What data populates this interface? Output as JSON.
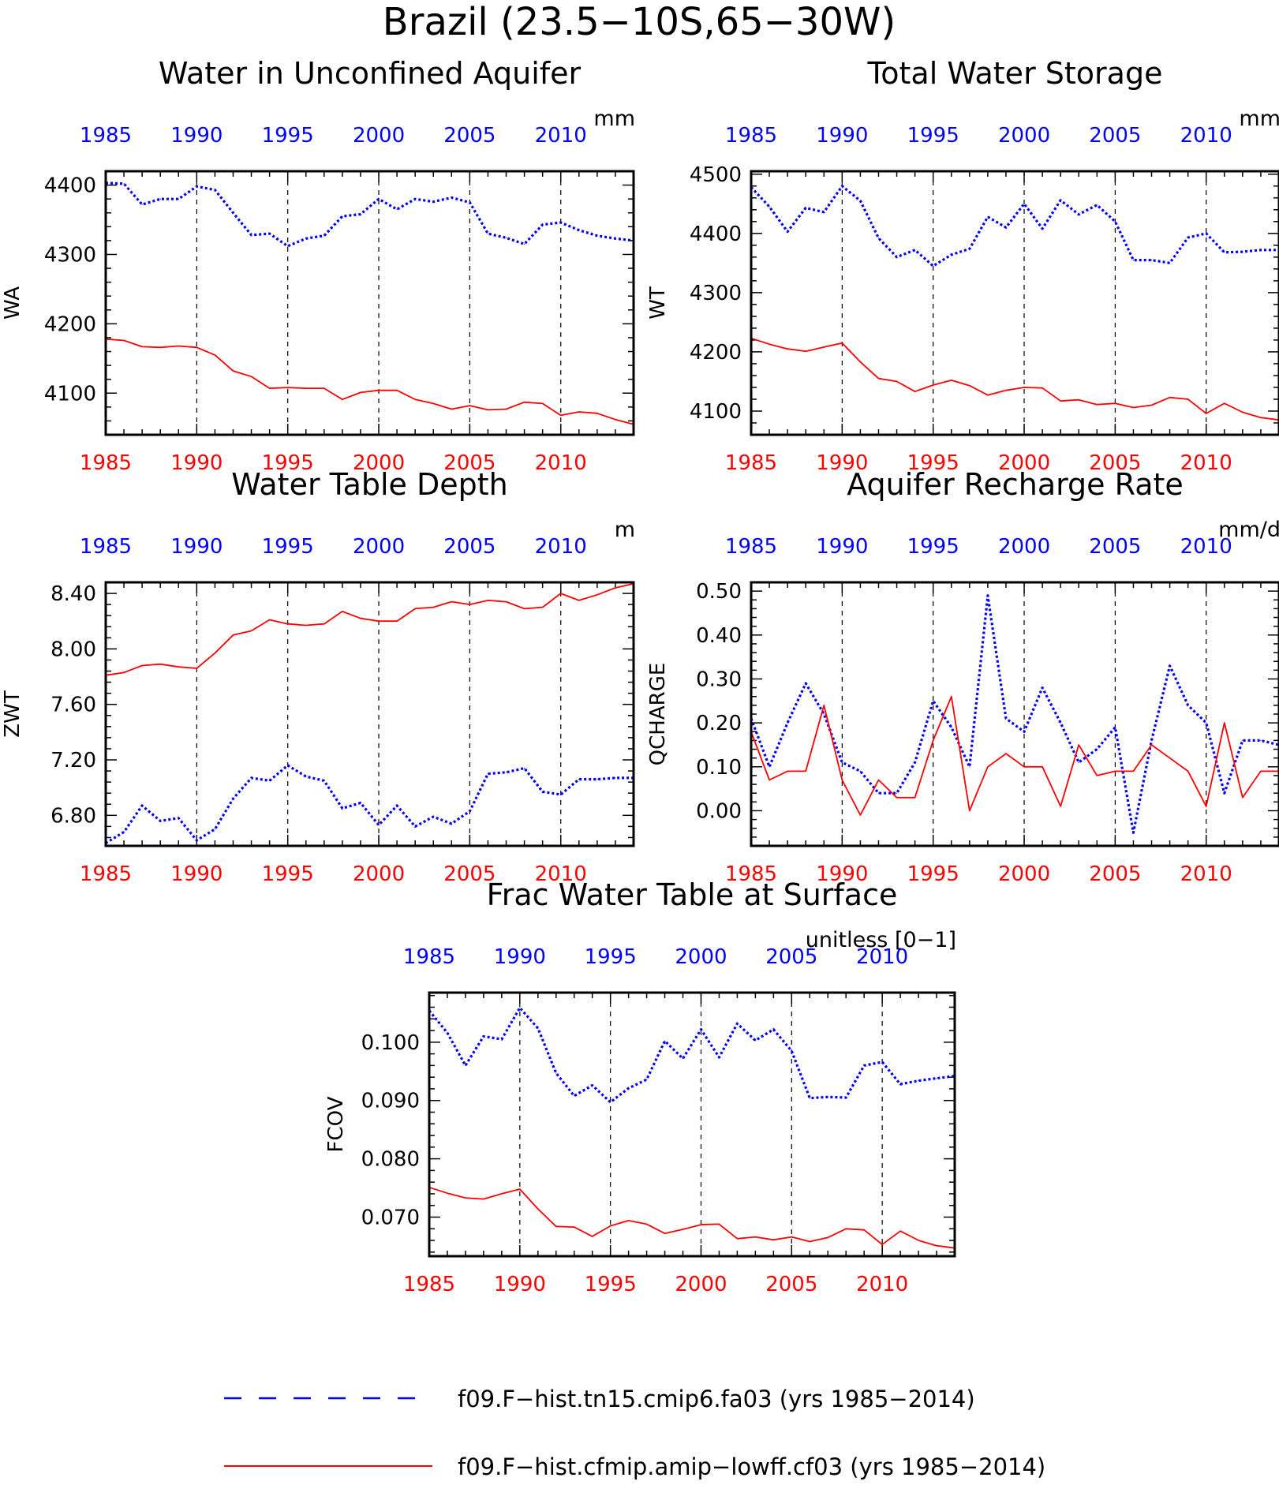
{
  "figure": {
    "main_title": "Brazil (23.5−10S,65−30W)"
  },
  "colors": {
    "series_blue": "#0000ff",
    "series_red": "#ff0000",
    "axis": "#000000"
  },
  "legend": [
    {
      "label": "f09.F−hist.tn15.cmip6.fa03 (yrs 1985−2014)",
      "color": "#0000ff",
      "style": "dashed"
    },
    {
      "label": "f09.F−hist.cfmip.amip−lowff.cf03 (yrs 1985−2014)",
      "color": "#ff0000",
      "style": "solid"
    }
  ],
  "chart_data": [
    {
      "type": "line",
      "title": "Water in Unconfined Aquifer",
      "units": "mm",
      "ylabel": "WA",
      "xlim": [
        1985,
        2014
      ],
      "ylim": [
        4040,
        4420
      ],
      "yticks": [
        4100,
        4200,
        4300,
        4400
      ],
      "ytick_labels": [
        "4100",
        "4200",
        "4300",
        "4400"
      ],
      "xticks": [
        1985,
        1990,
        1995,
        2000,
        2005,
        2010
      ],
      "xtick_labels": [
        "1985",
        "1990",
        "1995",
        "2000",
        "2005",
        "2010"
      ],
      "x": [
        1985,
        1986,
        1987,
        1988,
        1989,
        1990,
        1991,
        1992,
        1993,
        1994,
        1995,
        1996,
        1997,
        1998,
        1999,
        2000,
        2001,
        2002,
        2003,
        2004,
        2005,
        2006,
        2007,
        2008,
        2009,
        2010,
        2011,
        2012,
        2013,
        2014
      ],
      "series": [
        {
          "values": [
            4403,
            4402,
            4372,
            4380,
            4380,
            4398,
            4393,
            4360,
            4328,
            4330,
            4312,
            4323,
            4327,
            4355,
            4358,
            4380,
            4365,
            4380,
            4376,
            4382,
            4375,
            4330,
            4324,
            4315,
            4343,
            4346,
            4335,
            4327,
            4323,
            4320
          ],
          "color": "#0000ff",
          "style": "dashed"
        },
        {
          "values": [
            4178,
            4176,
            4167,
            4166,
            4168,
            4166,
            4155,
            4132,
            4124,
            4107,
            4108,
            4107,
            4107,
            4091,
            4101,
            4104,
            4104,
            4091,
            4085,
            4077,
            4082,
            4076,
            4077,
            4087,
            4085,
            4068,
            4073,
            4071,
            4062,
            4055
          ],
          "color": "#ff0000",
          "style": "solid"
        }
      ]
    },
    {
      "type": "line",
      "title": "Total Water Storage",
      "units": "mm",
      "ylabel": "WT",
      "xlim": [
        1985,
        2014
      ],
      "ylim": [
        4060,
        4505
      ],
      "yticks": [
        4100,
        4200,
        4300,
        4400,
        4500
      ],
      "ytick_labels": [
        "4100",
        "4200",
        "4300",
        "4400",
        "4500"
      ],
      "xticks": [
        1985,
        1990,
        1995,
        2000,
        2005,
        2010
      ],
      "xtick_labels": [
        "1985",
        "1990",
        "1995",
        "2000",
        "2005",
        "2010"
      ],
      "x": [
        1985,
        1986,
        1987,
        1988,
        1989,
        1990,
        1991,
        1992,
        1993,
        1994,
        1995,
        1996,
        1997,
        1998,
        1999,
        2000,
        2001,
        2002,
        2003,
        2004,
        2005,
        2006,
        2007,
        2008,
        2009,
        2010,
        2011,
        2012,
        2013,
        2014
      ],
      "series": [
        {
          "values": [
            4478,
            4445,
            4403,
            4443,
            4436,
            4480,
            4455,
            4392,
            4360,
            4372,
            4345,
            4364,
            4374,
            4428,
            4410,
            4450,
            4408,
            4456,
            4432,
            4448,
            4420,
            4355,
            4355,
            4350,
            4393,
            4400,
            4368,
            4369,
            4372,
            4372
          ],
          "color": "#0000ff",
          "style": "dashed"
        },
        {
          "values": [
            4223,
            4213,
            4205,
            4201,
            4208,
            4215,
            4183,
            4155,
            4150,
            4133,
            4144,
            4152,
            4143,
            4127,
            4135,
            4140,
            4139,
            4117,
            4119,
            4111,
            4113,
            4106,
            4110,
            4123,
            4120,
            4096,
            4113,
            4098,
            4089,
            4085
          ],
          "color": "#ff0000",
          "style": "solid"
        }
      ]
    },
    {
      "type": "line",
      "title": "Water Table Depth",
      "units": "m",
      "ylabel": "ZWT",
      "xlim": [
        1985,
        2014
      ],
      "ylim": [
        6.58,
        8.48
      ],
      "yticks": [
        6.8,
        7.2,
        7.6,
        8.0,
        8.4
      ],
      "ytick_labels": [
        "6.80",
        "7.20",
        "7.60",
        "8.00",
        "8.40"
      ],
      "xticks": [
        1985,
        1990,
        1995,
        2000,
        2005,
        2010
      ],
      "xtick_labels": [
        "1985",
        "1990",
        "1995",
        "2000",
        "2005",
        "2010"
      ],
      "x": [
        1985,
        1986,
        1987,
        1988,
        1989,
        1990,
        1991,
        1992,
        1993,
        1994,
        1995,
        1996,
        1997,
        1998,
        1999,
        2000,
        2001,
        2002,
        2003,
        2004,
        2005,
        2006,
        2007,
        2008,
        2009,
        2010,
        2011,
        2012,
        2013,
        2014
      ],
      "series": [
        {
          "values": [
            6.6,
            6.68,
            6.87,
            6.76,
            6.78,
            6.62,
            6.7,
            6.92,
            7.07,
            7.05,
            7.16,
            7.08,
            7.05,
            6.85,
            6.89,
            6.73,
            6.87,
            6.72,
            6.79,
            6.74,
            6.83,
            7.1,
            7.11,
            7.14,
            6.97,
            6.95,
            7.06,
            7.06,
            7.07,
            7.07
          ],
          "color": "#0000ff",
          "style": "dashed"
        },
        {
          "values": [
            7.81,
            7.83,
            7.88,
            7.89,
            7.87,
            7.86,
            7.97,
            8.1,
            8.13,
            8.21,
            8.18,
            8.17,
            8.18,
            8.27,
            8.22,
            8.2,
            8.2,
            8.29,
            8.3,
            8.34,
            8.32,
            8.35,
            8.34,
            8.29,
            8.3,
            8.4,
            8.35,
            8.39,
            8.44,
            8.47
          ],
          "color": "#ff0000",
          "style": "solid"
        }
      ]
    },
    {
      "type": "line",
      "title": "Aquifer Recharge Rate",
      "units": "mm/d",
      "ylabel": "QCHARGE",
      "xlim": [
        1985,
        2014
      ],
      "ylim": [
        -0.08,
        0.52
      ],
      "yticks": [
        0.0,
        0.1,
        0.2,
        0.3,
        0.4,
        0.5
      ],
      "ytick_labels": [
        "0.00",
        "0.10",
        "0.20",
        "0.30",
        "0.40",
        "0.50"
      ],
      "xticks": [
        1985,
        1990,
        1995,
        2000,
        2005,
        2010
      ],
      "xtick_labels": [
        "1985",
        "1990",
        "1995",
        "2000",
        "2005",
        "2010"
      ],
      "x": [
        1985,
        1986,
        1987,
        1988,
        1989,
        1990,
        1991,
        1992,
        1993,
        1994,
        1995,
        1996,
        1997,
        1998,
        1999,
        2000,
        2001,
        2002,
        2003,
        2004,
        2005,
        2006,
        2007,
        2008,
        2009,
        2010,
        2011,
        2012,
        2013,
        2014
      ],
      "series": [
        {
          "values": [
            0.21,
            0.1,
            0.2,
            0.29,
            0.22,
            0.11,
            0.09,
            0.04,
            0.04,
            0.11,
            0.25,
            0.19,
            0.1,
            0.49,
            0.21,
            0.18,
            0.28,
            0.2,
            0.11,
            0.14,
            0.19,
            -0.05,
            0.16,
            0.33,
            0.24,
            0.2,
            0.04,
            0.16,
            0.16,
            0.15
          ],
          "color": "#0000ff",
          "style": "dashed"
        },
        {
          "values": [
            0.18,
            0.07,
            0.09,
            0.09,
            0.24,
            0.07,
            -0.01,
            0.07,
            0.03,
            0.03,
            0.16,
            0.26,
            0.0,
            0.1,
            0.13,
            0.1,
            0.1,
            0.01,
            0.15,
            0.08,
            0.09,
            0.09,
            0.15,
            0.12,
            0.09,
            0.01,
            0.2,
            0.03,
            0.09,
            0.09
          ],
          "color": "#ff0000",
          "style": "solid"
        }
      ]
    },
    {
      "type": "line",
      "title": "Frac Water Table at Surface",
      "units": "unitless [0−1]",
      "ylabel": "FCOV",
      "xlim": [
        1985,
        2014
      ],
      "ylim": [
        0.0633,
        0.1085
      ],
      "yticks": [
        0.07,
        0.08,
        0.09,
        0.1
      ],
      "ytick_labels": [
        "0.070",
        "0.080",
        "0.090",
        "0.100"
      ],
      "xticks": [
        1985,
        1990,
        1995,
        2000,
        2005,
        2010
      ],
      "xtick_labels": [
        "1985",
        "1990",
        "1995",
        "2000",
        "2005",
        "2010"
      ],
      "x": [
        1985,
        1986,
        1987,
        1988,
        1989,
        1990,
        1991,
        1992,
        1993,
        1994,
        1995,
        1996,
        1997,
        1998,
        1999,
        2000,
        2001,
        2002,
        2003,
        2004,
        2005,
        2006,
        2007,
        2008,
        2009,
        2010,
        2011,
        2012,
        2013,
        2014
      ],
      "series": [
        {
          "values": [
            0.1054,
            0.1016,
            0.096,
            0.101,
            0.1005,
            0.1059,
            0.1024,
            0.0947,
            0.0908,
            0.0926,
            0.0897,
            0.0921,
            0.0936,
            0.1002,
            0.0972,
            0.1022,
            0.0974,
            0.1032,
            0.1003,
            0.1022,
            0.0985,
            0.0904,
            0.0906,
            0.0905,
            0.096,
            0.0966,
            0.0928,
            0.0934,
            0.0938,
            0.0942
          ],
          "color": "#0000ff",
          "style": "dashed"
        },
        {
          "values": [
            0.0751,
            0.0741,
            0.0733,
            0.0731,
            0.074,
            0.0748,
            0.0714,
            0.0684,
            0.0683,
            0.0667,
            0.0685,
            0.0694,
            0.0688,
            0.0672,
            0.0679,
            0.0687,
            0.0688,
            0.0663,
            0.0666,
            0.0661,
            0.0666,
            0.0658,
            0.0665,
            0.068,
            0.0678,
            0.0653,
            0.0676,
            0.066,
            0.0651,
            0.0647
          ],
          "color": "#ff0000",
          "style": "solid"
        }
      ]
    }
  ]
}
